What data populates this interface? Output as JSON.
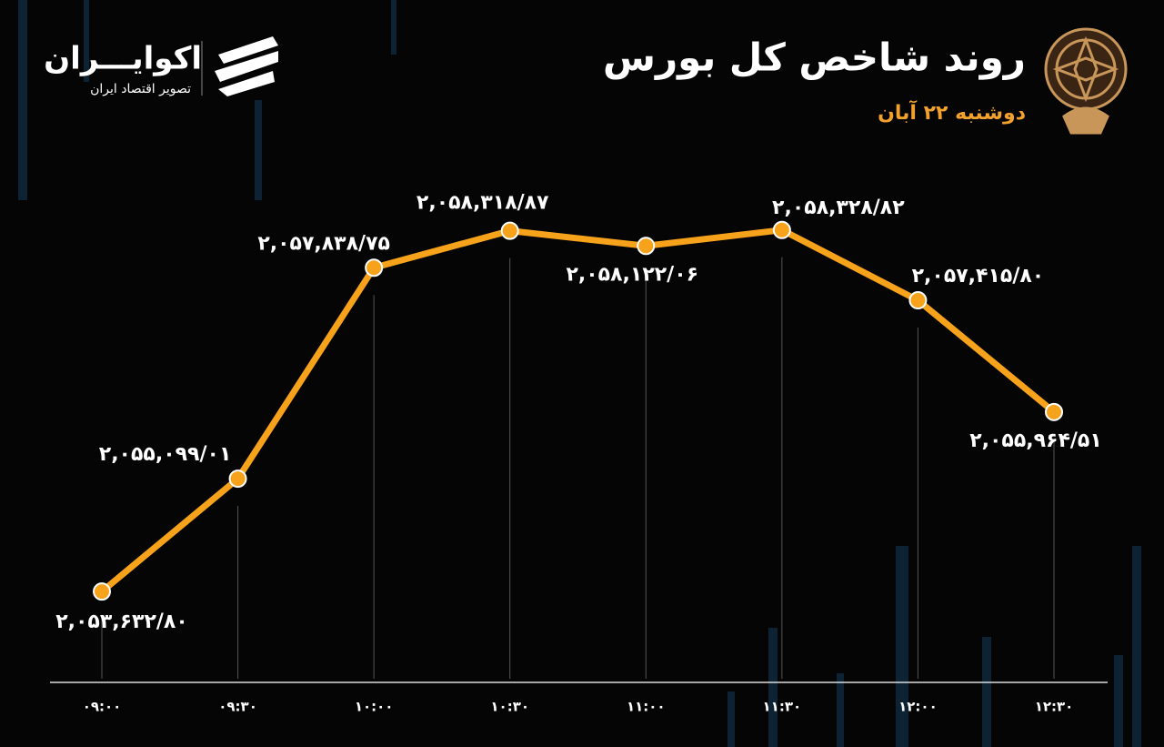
{
  "branding": {
    "logo_text": "اکوایـــران",
    "logo_subtitle": "تصویر اقتصاد ایران"
  },
  "chart_data": {
    "type": "line",
    "title": "روند شاخص کل بورس",
    "subtitle": "دوشنبه ۲۲ آبان",
    "categories": [
      "۰۹:۰۰",
      "۰۹:۳۰",
      "۱۰:۰۰",
      "۱۰:۳۰",
      "۱۱:۰۰",
      "۱۱:۳۰",
      "۱۲:۰۰",
      "۱۲:۳۰"
    ],
    "series": [
      {
        "color": "#f7a21b",
        "values": [
          2053632.8,
          2055099.01,
          2057838.75,
          2058318.87,
          2058122.06,
          2058328.82,
          2057415.8,
          2055964.51
        ],
        "value_labels": [
          "۲,۰۵۳,۶۳۲/۸۰",
          "۲,۰۵۵,۰۹۹/۰۱",
          "۲,۰۵۷,۸۳۸/۷۵",
          "۲,۰۵۸,۳۱۸/۸۷",
          "۲,۰۵۸,۱۲۲/۰۶",
          "۲,۰۵۸,۳۲۸/۸۲",
          "۲,۰۵۷,۴۱۵/۸۰",
          "۲,۰۵۵,۹۶۴/۵۱"
        ]
      }
    ],
    "ylim": [
      2052500,
      2059000
    ]
  }
}
